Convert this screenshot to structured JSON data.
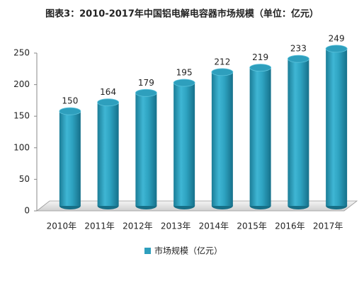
{
  "chart_data": {
    "type": "bar",
    "title": "图表3：2010-2017年中国铝电解电容器市场规模（单位：亿元）",
    "categories": [
      "2010年",
      "2011年",
      "2012年",
      "2013年",
      "2014年",
      "2015年",
      "2016年",
      "2017年"
    ],
    "series": [
      {
        "name": "市场规模（亿元）",
        "color": "#2e9fbd",
        "values": [
          150,
          164,
          179,
          195,
          212,
          219,
          233,
          249
        ]
      }
    ],
    "ylim": [
      0,
      250
    ],
    "yticks": [
      0,
      50,
      100,
      150,
      200,
      250
    ],
    "legend": "bottom"
  }
}
